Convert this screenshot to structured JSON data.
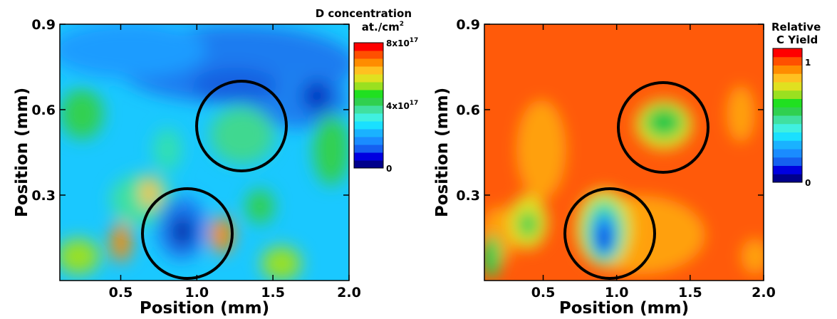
{
  "chart_data": [
    {
      "type": "heatmap",
      "title": "",
      "xlabel": "Position (mm)",
      "ylabel": "Position (mm)",
      "xlim": [
        0.1,
        2.0
      ],
      "ylim": [
        0.0,
        0.9
      ],
      "x_ticks": [
        "0.5",
        "1.0",
        "1.5",
        "2.0"
      ],
      "y_ticks": [
        "0.3",
        "0.6",
        "0.9"
      ],
      "colorbar": {
        "title_line1": "D concentration",
        "title_line2": "at./cm",
        "title_sup": "2",
        "labels": [
          {
            "base": "8x10",
            "exp": "17",
            "level": 1.0
          },
          {
            "base": "4x10",
            "exp": "17",
            "level": 0.5
          },
          {
            "base": "0",
            "exp": "",
            "level": 0.0
          }
        ],
        "range": [
          0,
          8e+17
        ]
      },
      "circles": [
        {
          "cx": 1.3,
          "cy": 0.54,
          "r": 0.3
        },
        {
          "cx": 0.94,
          "cy": 0.17,
          "r": 0.3
        }
      ],
      "grid": false
    },
    {
      "type": "heatmap",
      "title": "",
      "xlabel": "Position (mm)",
      "ylabel": "Position (mm)",
      "xlim": [
        0.1,
        2.0
      ],
      "ylim": [
        0.0,
        0.9
      ],
      "x_ticks": [
        "0.5",
        "1.0",
        "1.5",
        "2.0"
      ],
      "y_ticks": [
        "0.3",
        "0.6",
        "0.9"
      ],
      "colorbar": {
        "title_line1": "Relative",
        "title_line2": "C Yield",
        "title_sup": "",
        "labels": [
          {
            "base": "1",
            "exp": "",
            "level": 0.9
          },
          {
            "base": "0",
            "exp": "",
            "level": 0.0
          }
        ],
        "range": [
          0,
          1.1
        ]
      },
      "circles": [
        {
          "cx": 1.3,
          "cy": 0.54,
          "r": 0.3
        },
        {
          "cx": 0.94,
          "cy": 0.16,
          "r": 0.3
        }
      ],
      "grid": false
    }
  ],
  "palette": [
    "#00008b",
    "#0000e0",
    "#1560f0",
    "#1a8cff",
    "#1ab2ff",
    "#1ae0ff",
    "#40f0e0",
    "#40e0a0",
    "#30d050",
    "#20e020",
    "#9ae020",
    "#e0e020",
    "#ffc020",
    "#ff8c00",
    "#ff5000",
    "#ff0000"
  ]
}
